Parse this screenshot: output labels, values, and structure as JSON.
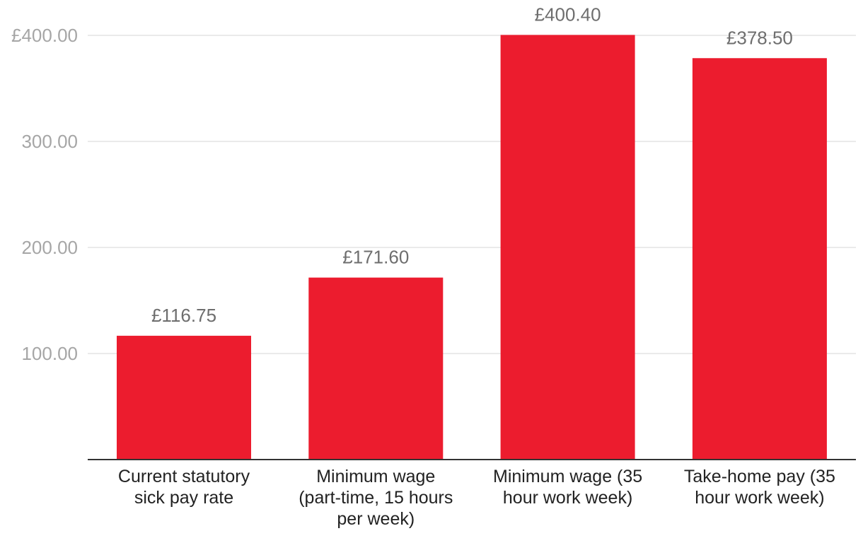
{
  "chart_data": {
    "type": "bar",
    "categories": [
      [
        "Current statutory",
        "sick pay rate"
      ],
      [
        "Minimum wage",
        "(part-time, 15 hours",
        "per week)"
      ],
      [
        "Minimum wage (35",
        "hour work week)"
      ],
      [
        "Take-home pay (35",
        "hour work week)"
      ]
    ],
    "values": [
      116.75,
      171.6,
      400.4,
      378.5
    ],
    "data_labels": [
      "£116.75",
      "£171.60",
      "£400.40",
      "£378.50"
    ],
    "yticks": [
      100,
      200,
      300,
      400
    ],
    "ytick_labels": [
      "100.00",
      "200.00",
      "300.00",
      "£400.00"
    ],
    "ylim": [
      0,
      400
    ],
    "title": "",
    "xlabel": "",
    "ylabel": "",
    "grid": true,
    "bar_color": "#ec1c2e"
  }
}
